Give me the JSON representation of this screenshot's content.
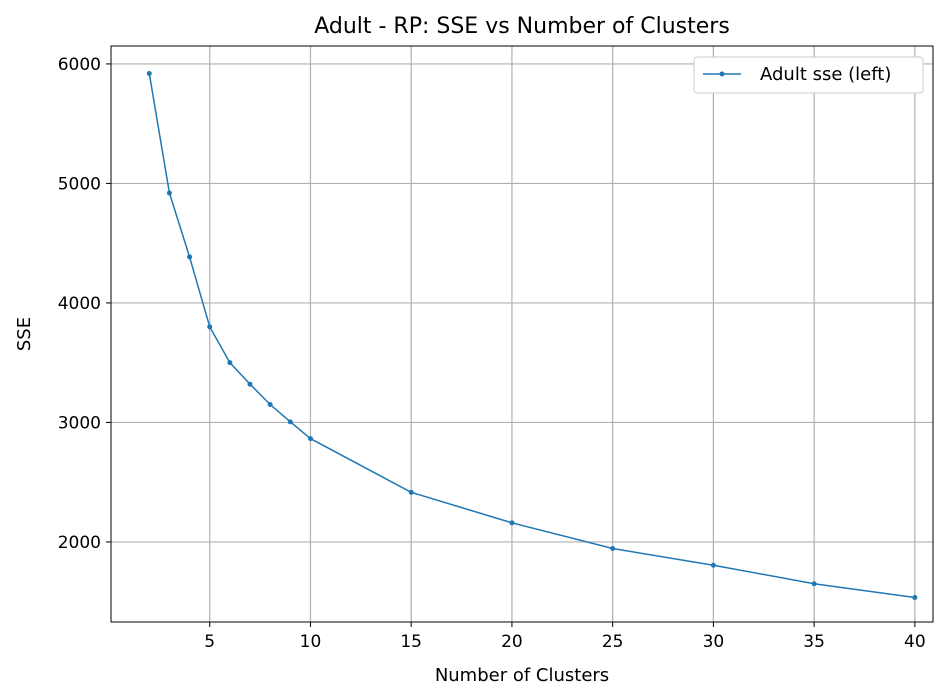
{
  "chart_data": {
    "type": "line",
    "title": "Adult - RP: SSE vs Number of Clusters",
    "xlabel": "Number of Clusters",
    "ylabel": "SSE",
    "xlim": [
      0.1,
      40.9
    ],
    "ylim": [
      1330,
      6150
    ],
    "xticks": [
      5,
      10,
      15,
      20,
      25,
      30,
      35,
      40
    ],
    "yticks": [
      2000,
      3000,
      4000,
      5000,
      6000
    ],
    "grid": true,
    "legend_position": "top-right",
    "series": [
      {
        "name": "Adult sse (left)",
        "color": "#1f77b4",
        "marker": "circle",
        "x": [
          2,
          3,
          4,
          5,
          6,
          7,
          8,
          9,
          10,
          15,
          20,
          25,
          30,
          35,
          40
        ],
        "y": [
          5920,
          4920,
          4385,
          3800,
          3500,
          3320,
          3150,
          3005,
          2865,
          2415,
          2160,
          1945,
          1805,
          1650,
          1535
        ]
      }
    ]
  }
}
